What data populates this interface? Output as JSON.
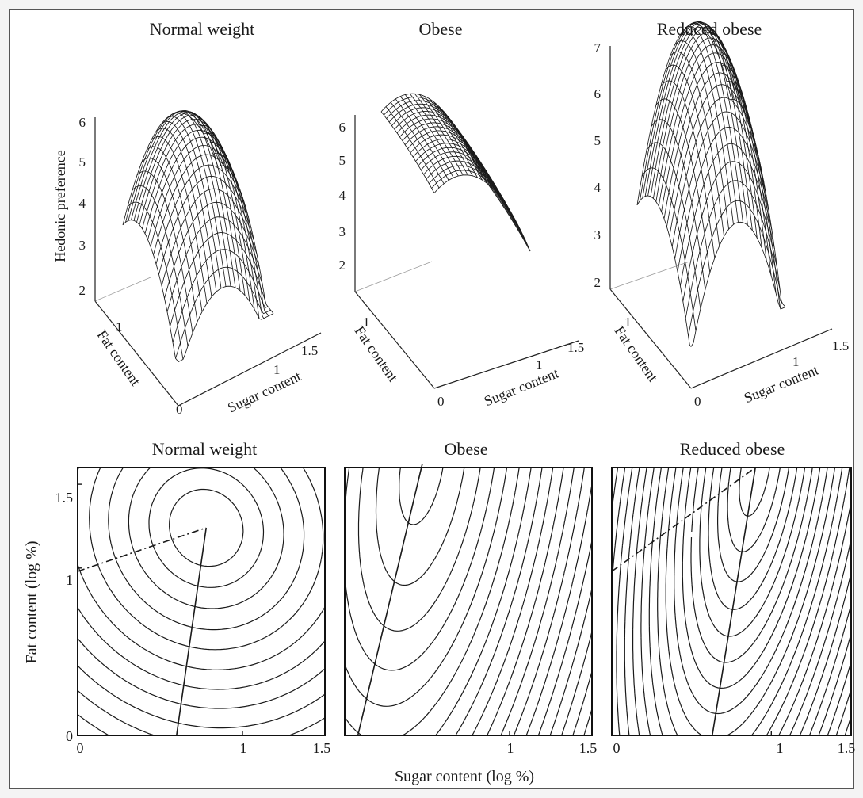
{
  "chart_data": [
    {
      "type": "surface",
      "title": "Normal weight",
      "zlabel": "Hedonic preference",
      "xlabel": "Sugar content",
      "ylabel": "Fat content",
      "xlim": [
        0,
        1.5
      ],
      "ylim": [
        0,
        1.5
      ],
      "zlim": [
        2,
        6
      ],
      "z_ticks": [
        "2",
        "3",
        "4",
        "5",
        "6"
      ],
      "x_ticks": [
        "1",
        "1.5"
      ],
      "y_ticks": [
        "0",
        "1"
      ],
      "surface": {
        "c": 1.9,
        "a": 2.1,
        "b": 1.6,
        "cx": -6.8,
        "cy": -6.4,
        "cxx": 4.2,
        "cyy": 3.1,
        "cxy": -1.0
      }
    },
    {
      "type": "surface",
      "title": "Obese",
      "zlabel": "",
      "xlabel": "Sugar content",
      "ylabel": "Fat content",
      "xlim": [
        0,
        1.5
      ],
      "ylim": [
        0,
        1.5
      ],
      "zlim": [
        1.2,
        6.5
      ],
      "z_ticks": [
        "2",
        "3",
        "4",
        "5",
        "6"
      ],
      "x_ticks": [
        "1",
        "1.5"
      ],
      "y_ticks": [
        "0",
        "1"
      ],
      "surface": {
        "c": 1.7,
        "a": 2.6,
        "b": 1.2,
        "cx": -4.8,
        "cy": -0.5,
        "cxx": 0.3,
        "cyy": 1.5,
        "cxy": 0.0
      }
    },
    {
      "type": "surface",
      "title": "Reduced obese",
      "zlabel": "",
      "xlabel": "Sugar content",
      "ylabel": "Fat content",
      "xlim": [
        0,
        1.5
      ],
      "ylim": [
        0,
        1.5
      ],
      "zlim": [
        1.8,
        7.1
      ],
      "z_ticks": [
        "2",
        "3",
        "4",
        "5",
        "6",
        "7"
      ],
      "x_ticks": [
        "1",
        "1.5"
      ],
      "y_ticks": [
        "0",
        "1"
      ],
      "surface": {
        "c": 2.0,
        "a": 5.2,
        "b": 1.0,
        "cx": -5.2,
        "cy": -7.5,
        "cxx": 2.0,
        "cyy": 4.5,
        "cxy": 0.5
      }
    },
    {
      "type": "contour",
      "title": "Normal weight",
      "xlabel": "Sugar content (log %)",
      "ylabel": "Fat content (log %)",
      "xlim": [
        0,
        1.5
      ],
      "ylim": [
        0,
        1.6
      ],
      "x_ticks": [
        {
          "v": 0,
          "t": "0"
        },
        {
          "v": 1,
          "t": "1"
        },
        {
          "v": 1.5,
          "t": "1.5"
        }
      ],
      "y_ticks": [
        {
          "v": 0,
          "t": "0"
        },
        {
          "v": 1,
          "t": "1"
        },
        {
          "v": 1.5,
          "t": "1.5"
        }
      ],
      "optimum": [
        0.78,
        1.24
      ],
      "solid_ridge": [
        [
          0.6,
          0
        ],
        [
          0.78,
          1.24
        ]
      ],
      "dashed_ridge": [
        [
          0,
          0.98
        ],
        [
          0.78,
          1.24
        ]
      ],
      "levels": [
        0.05,
        0.12,
        0.22,
        0.35,
        0.5,
        0.68,
        0.88,
        1.1,
        1.35,
        1.62,
        1.92,
        2.25,
        2.6,
        2.98,
        3.4,
        3.85,
        4.35,
        4.9,
        5.5,
        6.15,
        6.85,
        7.6
      ],
      "quad": {
        "axx": 1.0,
        "ayy": 0.95,
        "axy": 0.15
      }
    },
    {
      "type": "contour",
      "title": "Obese",
      "xlabel": "Sugar content (log %)",
      "ylabel": "",
      "xlim": [
        0,
        1.5
      ],
      "ylim": [
        0,
        1.6
      ],
      "x_ticks": [
        {
          "v": 1,
          "t": "1"
        },
        {
          "v": 1.5,
          "t": "1.5"
        }
      ],
      "y_ticks": [],
      "optimum": [
        0.47,
        1.62
      ],
      "solid_ridge": [
        [
          0.08,
          0
        ],
        [
          0.47,
          1.62
        ]
      ],
      "dashed_ridge": [],
      "levels": [
        0.05,
        0.2,
        0.38,
        0.58,
        0.8,
        1.05,
        1.32,
        1.6,
        1.9,
        2.22,
        2.56,
        2.92,
        3.3,
        3.7,
        4.12,
        4.56,
        5.02,
        5.5,
        6.0
      ],
      "quad": {
        "axx": 3.0,
        "ayy": 0.45,
        "axy": -0.9
      }
    },
    {
      "type": "contour",
      "title": "Reduced obese",
      "xlabel": "",
      "ylabel": "",
      "xlim": [
        0,
        1.5
      ],
      "ylim": [
        0,
        1.6
      ],
      "x_ticks": [
        {
          "v": 0,
          "t": "0"
        },
        {
          "v": 1,
          "t": "1"
        },
        {
          "v": 1.5,
          "t": "1.5"
        }
      ],
      "y_ticks": [],
      "optimum": [
        0.9,
        1.6
      ],
      "solid_ridge": [
        [
          0.63,
          0
        ],
        [
          0.9,
          1.6
        ]
      ],
      "dashed_ridge": [
        [
          0,
          0.98
        ],
        [
          0.9,
          1.6
        ]
      ],
      "levels": [
        0.04,
        0.12,
        0.22,
        0.34,
        0.48,
        0.64,
        0.82,
        1.02,
        1.24,
        1.48,
        1.74,
        2.02,
        2.32,
        2.64,
        2.98,
        3.34,
        3.72,
        4.12,
        4.55,
        5.0,
        5.48
      ],
      "quad": {
        "axx": 5.0,
        "ayy": 0.6,
        "axy": -1.6
      }
    }
  ]
}
